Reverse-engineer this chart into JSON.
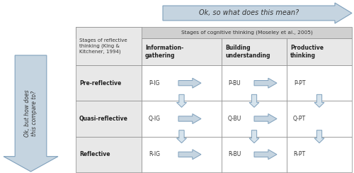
{
  "fig_width": 5.0,
  "fig_height": 2.44,
  "dpi": 100,
  "bg_color": "#ffffff",
  "arrow_fill": "#c5d4e0",
  "arrow_edge": "#7fa0bc",
  "down_arrow_fill": "#d6e3ec",
  "down_arrow_edge": "#7fa0bc",
  "gray_bg": "#d0d0d0",
  "light_gray": "#e8e8e8",
  "white": "#ffffff",
  "table_edge": "#888888",
  "top_arrow_text": "Ok, so what does this mean?",
  "left_arrow_text": "Ok, but how does\nthis compare to?",
  "table_header": "Stages of cognitive thinking (Moseley et al., 2005)",
  "col0_header": "Stages of reflective\nthinking (King &\nKitchener, 1994)",
  "col_headers": [
    "Information-\ngathering",
    "Building\nunderstanding",
    "Productive\nthinking"
  ],
  "row_labels": [
    "Pre-reflective",
    "Quasi-reflective",
    "Reflective"
  ],
  "cells": [
    [
      "P-IG",
      "P-BU",
      "P-PT"
    ],
    [
      "Q-IG",
      "Q-BU",
      "Q-PT"
    ],
    [
      "R-IG",
      "R-BU",
      "R-PT"
    ]
  ]
}
